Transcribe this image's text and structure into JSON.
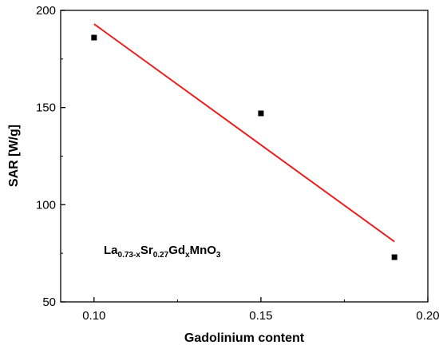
{
  "chart_data": {
    "type": "scatter",
    "xlabel": "Gadolinium content",
    "ylabel": "SAR [W/g]",
    "xlim": [
      0.09,
      0.2
    ],
    "ylim": [
      50,
      200
    ],
    "x_ticks": [
      0.1,
      0.15,
      0.2
    ],
    "x_tick_labels": [
      "0.10",
      "0.15",
      "0.20"
    ],
    "y_ticks": [
      50,
      100,
      150,
      200
    ],
    "y_tick_labels": [
      "50",
      "100",
      "150",
      "200"
    ],
    "grid": false,
    "series": [
      {
        "type": "scatter",
        "color": "#000000",
        "marker": "square",
        "points": [
          {
            "x": 0.1,
            "y": 186
          },
          {
            "x": 0.15,
            "y": 147
          },
          {
            "x": 0.19,
            "y": 73
          }
        ]
      }
    ],
    "fit": {
      "type": "line",
      "color": "#e8211f",
      "points": [
        {
          "x": 0.1,
          "y": 193
        },
        {
          "x": 0.19,
          "y": 81
        }
      ]
    },
    "annotation": {
      "parts": [
        {
          "text": "La"
        },
        {
          "text": "0.73-x",
          "sub": true
        },
        {
          "text": "Sr"
        },
        {
          "text": "0.27",
          "sub": true
        },
        {
          "text": "Gd"
        },
        {
          "text": "x",
          "sub": true
        },
        {
          "text": "MnO"
        },
        {
          "text": "3",
          "sub": true
        }
      ]
    }
  }
}
